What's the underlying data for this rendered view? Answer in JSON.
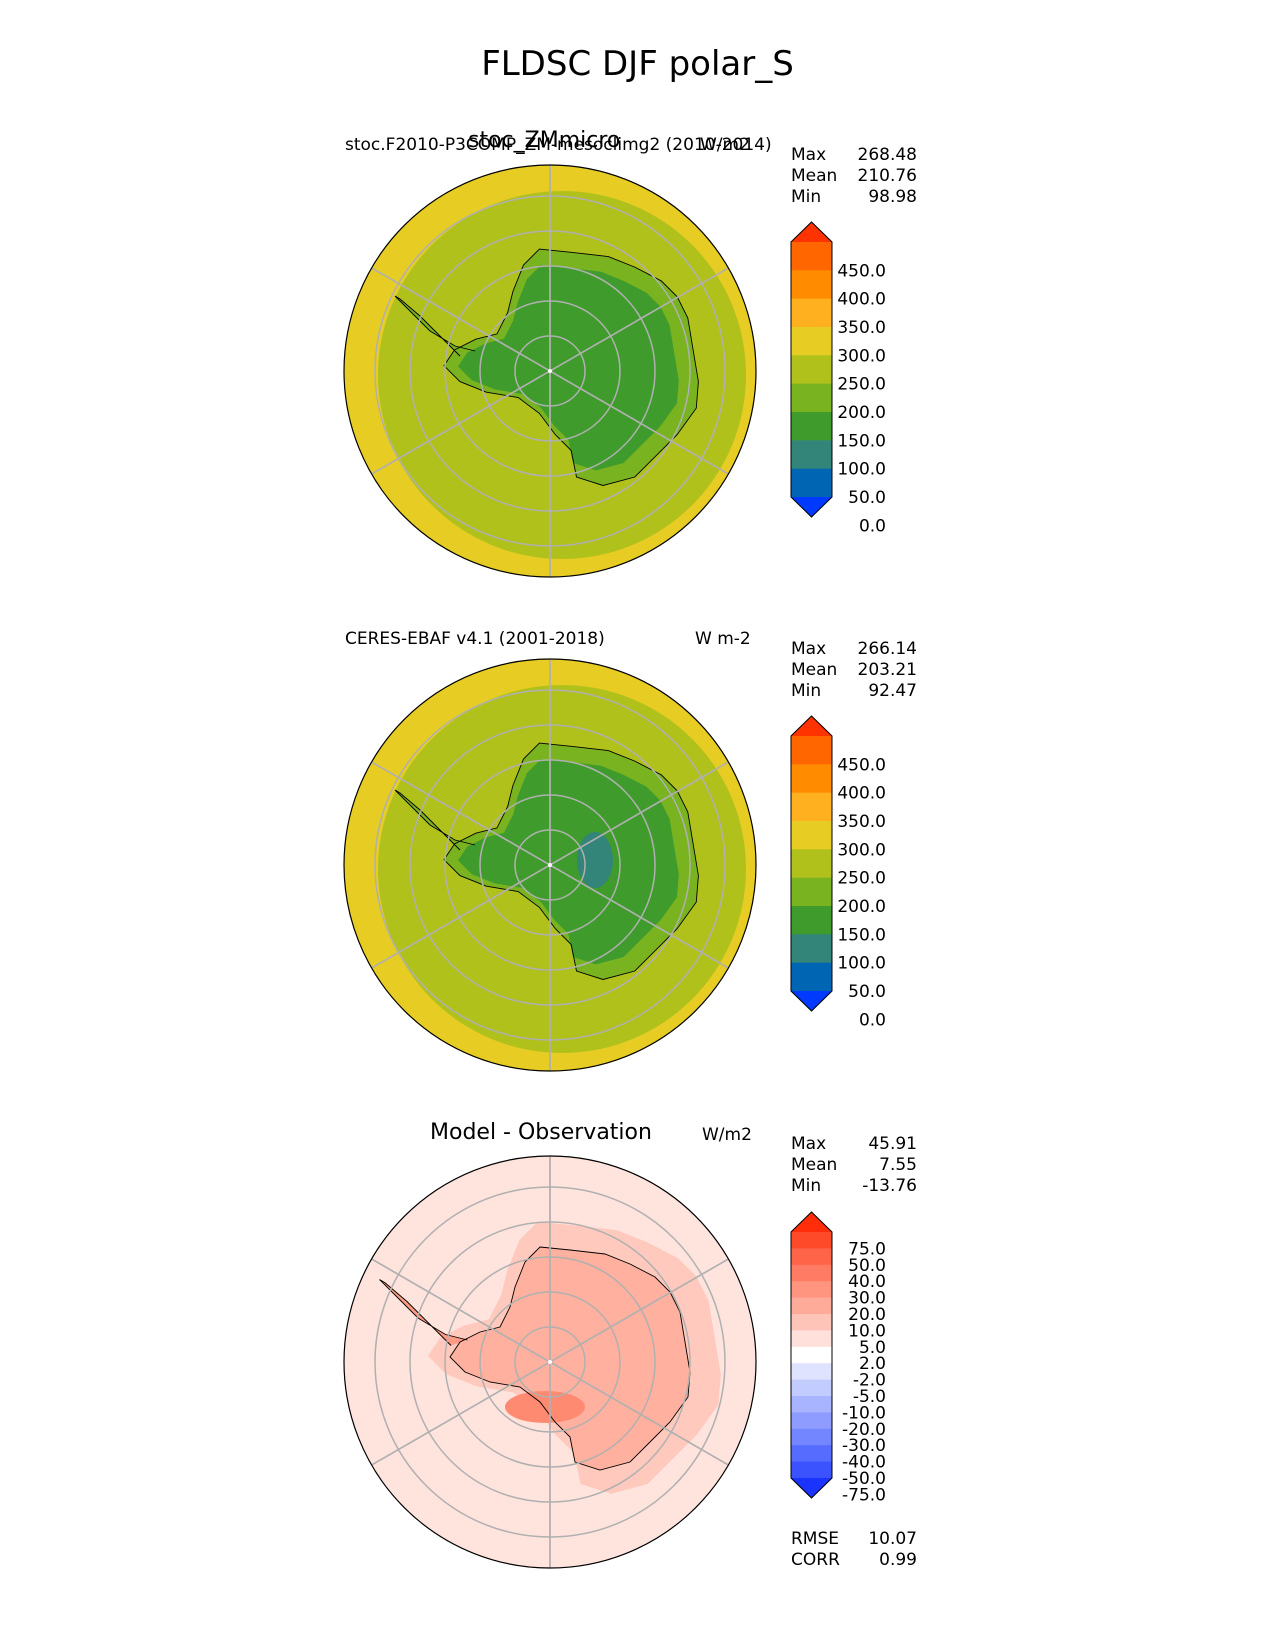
{
  "figure_title": "FLDSC DJF polar_S",
  "colors": {
    "land_green": "#3f9c2c",
    "green_light": "#79b320",
    "yellow_green": "#b1c11c",
    "yellow": "#e6cc23",
    "teal": "#33857a",
    "grid": "#b0b0b0"
  },
  "panels": [
    {
      "left_label": "stoc.F2010-P3COMP_ZM-mesoclimg2 (2010-2014)",
      "center_label": "stoc_ZMmicro",
      "right_label": "W/m2",
      "stats": {
        "max_label": "Max",
        "max": "268.48",
        "mean_label": "Mean",
        "mean": "210.76",
        "min_label": "Min",
        "min": "98.98"
      }
    },
    {
      "left_label": "CERES-EBAF v4.1 (2001-2018)",
      "center_label": "",
      "right_label": "W m-2",
      "stats": {
        "max_label": "Max",
        "max": "266.14",
        "mean_label": "Mean",
        "mean": "203.21",
        "min_label": "Min",
        "min": "92.47"
      }
    },
    {
      "left_label": "",
      "center_label": "Model - Observation",
      "right_label": "W/m2",
      "stats": {
        "max_label": "Max",
        "max": "45.91",
        "mean_label": "Mean",
        "mean": "7.55",
        "min_label": "Min",
        "min": "-13.76"
      },
      "metrics": {
        "rmse_label": "RMSE",
        "rmse": "10.07",
        "corr_label": "CORR",
        "corr": "0.99"
      }
    }
  ],
  "colorbars": {
    "field": {
      "ticks": [
        "450.0",
        "400.0",
        "350.0",
        "300.0",
        "250.0",
        "200.0",
        "150.0",
        "100.0",
        "50.0",
        "0.0"
      ],
      "colors": [
        "#ff3300",
        "#ff6600",
        "#ff8c00",
        "#ffb01e",
        "#e6cc23",
        "#b1c11c",
        "#79b320",
        "#3f9c2c",
        "#33857a",
        "#0066b3",
        "#0039ff"
      ]
    },
    "diff": {
      "ticks": [
        "75.0",
        "50.0",
        "40.0",
        "30.0",
        "20.0",
        "10.0",
        "5.0",
        "2.0",
        "-2.0",
        "-5.0",
        "-10.0",
        "-20.0",
        "-30.0",
        "-40.0",
        "-50.0",
        "-75.0"
      ],
      "colors": [
        "#ff2d0a",
        "#ff4a2a",
        "#ff6348",
        "#ff7b64",
        "#ff947f",
        "#ffab9a",
        "#ffc4b8",
        "#ffe0da",
        "#ffffff",
        "#dfe3ff",
        "#c3ccff",
        "#a8b4ff",
        "#8e9cff",
        "#7385ff",
        "#566bff",
        "#3a52ff",
        "#1a33ff"
      ]
    }
  },
  "chart_data": [
    {
      "type": "heatmap",
      "projection": "south polar stereographic",
      "field": "FLDSC",
      "season": "DJF",
      "units": "W/m2",
      "label": "stoc.F2010-P3COMP_ZM-mesoclimg2 (2010-2014)",
      "max": 268.48,
      "mean": 210.76,
      "min": 98.98,
      "levels": [
        0,
        50,
        100,
        150,
        200,
        250,
        300,
        350,
        400,
        450
      ]
    },
    {
      "type": "heatmap",
      "projection": "south polar stereographic",
      "field": "FLDSC",
      "season": "DJF",
      "units": "W m-2",
      "label": "CERES-EBAF v4.1 (2001-2018)",
      "max": 266.14,
      "mean": 203.21,
      "min": 92.47,
      "levels": [
        0,
        50,
        100,
        150,
        200,
        250,
        300,
        350,
        400,
        450
      ]
    },
    {
      "type": "heatmap",
      "projection": "south polar stereographic",
      "field": "FLDSC difference",
      "units": "W/m2",
      "label": "Model - Observation",
      "max": 45.91,
      "mean": 7.55,
      "min": -13.76,
      "rmse": 10.07,
      "corr": 0.99,
      "levels": [
        -75,
        -50,
        -40,
        -30,
        -20,
        -10,
        -5,
        -2,
        2,
        5,
        10,
        20,
        30,
        40,
        50,
        75
      ]
    }
  ]
}
